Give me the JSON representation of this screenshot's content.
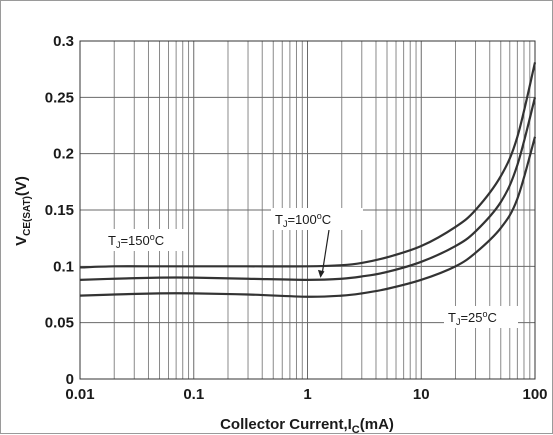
{
  "chart_data": {
    "type": "line",
    "title": "",
    "xscale": "log",
    "xlim": [
      0.01,
      100
    ],
    "ylim": [
      0,
      0.3
    ],
    "grid": true,
    "x_ticks": [
      {
        "value": 0.01,
        "label": "0.01"
      },
      {
        "value": 0.1,
        "label": "0.1"
      },
      {
        "value": 1,
        "label": "1"
      },
      {
        "value": 10,
        "label": "10"
      },
      {
        "value": 100,
        "label": "100"
      }
    ],
    "y_ticks": [
      {
        "value": 0,
        "label": "0"
      },
      {
        "value": 0.05,
        "label": "0.05"
      },
      {
        "value": 0.1,
        "label": "0.1"
      },
      {
        "value": 0.15,
        "label": "0.15"
      },
      {
        "value": 0.2,
        "label": "0.2"
      },
      {
        "value": 0.25,
        "label": "0.25"
      },
      {
        "value": 0.3,
        "label": "0.3"
      }
    ],
    "xlabel": {
      "main": "Collector Current,I",
      "sub": "C",
      "unit": "(mA)"
    },
    "ylabel": {
      "main": "V",
      "sub": "CE(SAT)",
      "unit": "(V)"
    },
    "line_color": "#333333",
    "series": [
      {
        "name": "TJ=150°C",
        "x": [
          0.01,
          0.02,
          0.05,
          0.1,
          0.3,
          1,
          2,
          3,
          5,
          10,
          20,
          30,
          50,
          70,
          100
        ],
        "y": [
          0.099,
          0.1,
          0.1,
          0.1,
          0.1,
          0.1,
          0.101,
          0.103,
          0.108,
          0.118,
          0.135,
          0.15,
          0.18,
          0.215,
          0.281
        ]
      },
      {
        "name": "TJ=100°C",
        "x": [
          0.01,
          0.02,
          0.05,
          0.1,
          0.3,
          1,
          2,
          3,
          5,
          10,
          20,
          30,
          50,
          70,
          100
        ],
        "y": [
          0.088,
          0.089,
          0.09,
          0.09,
          0.089,
          0.088,
          0.089,
          0.091,
          0.095,
          0.104,
          0.118,
          0.131,
          0.157,
          0.19,
          0.25
        ]
      },
      {
        "name": "TJ=25°C",
        "x": [
          0.01,
          0.02,
          0.05,
          0.1,
          0.3,
          1,
          2,
          3,
          5,
          10,
          20,
          30,
          50,
          70,
          100
        ],
        "y": [
          0.074,
          0.075,
          0.076,
          0.076,
          0.075,
          0.073,
          0.074,
          0.076,
          0.08,
          0.088,
          0.1,
          0.112,
          0.134,
          0.16,
          0.215
        ]
      }
    ],
    "annotations": [
      {
        "id": "t150",
        "main": "T",
        "sub": "J",
        "rest": "=150",
        "deg": "o",
        "unit": "C",
        "series": "TJ=150°C"
      },
      {
        "id": "t100",
        "main": "T",
        "sub": "J",
        "rest": "=100",
        "deg": "o",
        "unit": "C",
        "series": "TJ=100°C"
      },
      {
        "id": "t25",
        "main": "T",
        "sub": "J",
        "rest": "=25",
        "deg": "o",
        "unit": "C",
        "series": "TJ=25°C"
      }
    ]
  }
}
